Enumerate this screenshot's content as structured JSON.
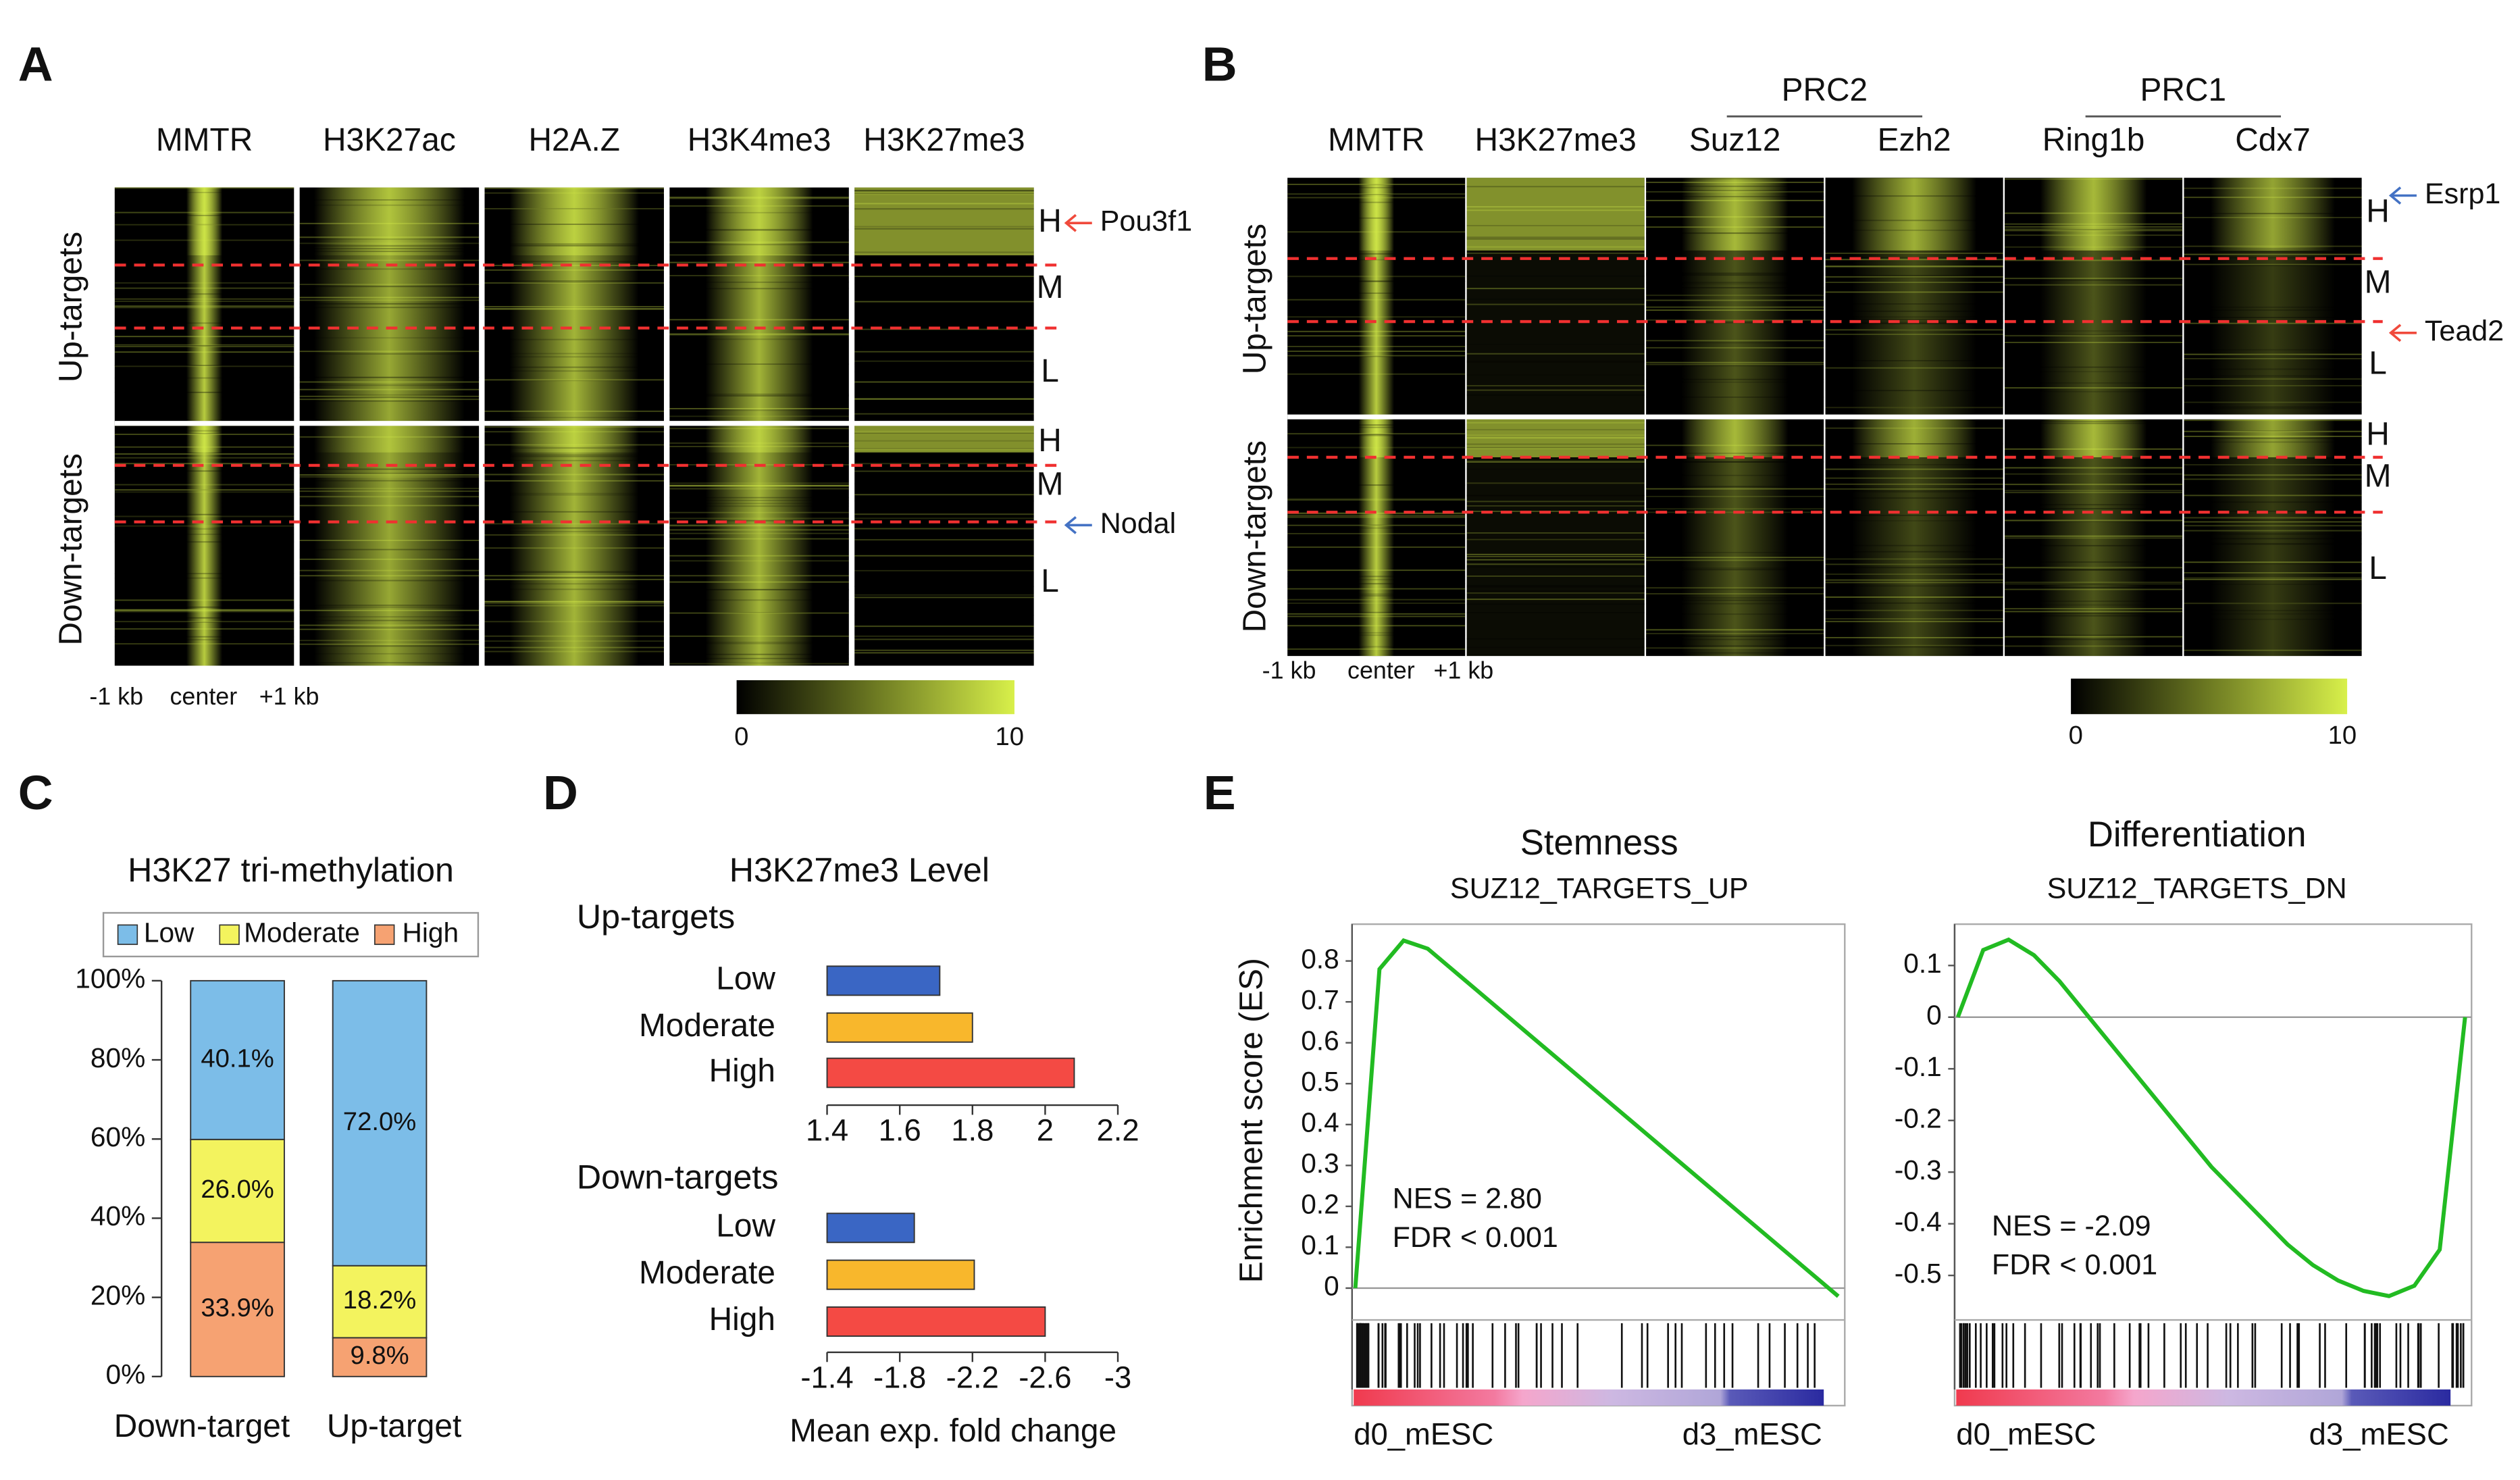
{
  "panel_labels": [
    "A",
    "B",
    "C",
    "D",
    "E"
  ],
  "heatmaps": [
    {
      "columns": [
        "MMTR",
        "H3K27ac",
        "H2A.Z",
        "H3K4me3",
        "H3K27me3"
      ],
      "groups": [
        "Up-targets",
        "Down-targets"
      ],
      "levels": [
        [
          "H",
          "M",
          "L"
        ],
        [
          "H",
          "M",
          "L"
        ]
      ],
      "annotations": [
        "Pou3f1",
        "Nodal"
      ],
      "x_labels": [
        "-1 kb",
        "center",
        "+1 kb"
      ],
      "colorbar_ticks": [
        0,
        10
      ]
    },
    {
      "column_groups": [
        "PRC2",
        "PRC1"
      ],
      "columns": [
        "MMTR",
        "H3K27me3",
        "Suz12",
        "Ezh2",
        "Ring1b",
        "Cdx7"
      ],
      "groups": [
        "Up-targets",
        "Down-targets"
      ],
      "levels": [
        [
          "H",
          "M",
          "L"
        ],
        [
          "H",
          "M",
          "L"
        ]
      ],
      "annotations": [
        "Esrp1",
        "Tead2"
      ],
      "x_labels": [
        "-1 kb",
        "center",
        "+1 kb"
      ],
      "colorbar_ticks": [
        0,
        10
      ]
    }
  ],
  "chart_data": [
    {
      "type": "stacked_bar",
      "title": "H3K27 tri-methylation",
      "categories": [
        "Down-target",
        "Up-target"
      ],
      "category_colors": [
        "#4472c4",
        "#f04a3c"
      ],
      "series": [
        {
          "name": "Low",
          "color": "#7cbde8",
          "values": [
            40.1,
            72.0
          ],
          "value_labels": [
            "40.1%",
            "72.0%"
          ]
        },
        {
          "name": "Moderate",
          "color": "#f3f35e",
          "values": [
            26.0,
            18.2
          ],
          "value_labels": [
            "26.0%",
            "18.2%"
          ]
        },
        {
          "name": "High",
          "color": "#f6a272",
          "values": [
            33.9,
            9.8
          ],
          "value_labels": [
            "33.9%",
            "9.8%"
          ]
        }
      ],
      "ylim": [
        0,
        100
      ],
      "yticks": [
        {
          "value": 0,
          "label": "0%"
        },
        {
          "value": 20,
          "label": "20%"
        },
        {
          "value": 40,
          "label": "40%"
        },
        {
          "value": 60,
          "label": "60%"
        },
        {
          "value": 80,
          "label": "80%"
        },
        {
          "value": 100,
          "label": "100%"
        }
      ],
      "legend": "top"
    },
    {
      "type": "hbar",
      "title": "H3K27me3 Level",
      "subtitle": "Up-targets",
      "subtitle_color": "#f04a3c",
      "categories": [
        "Low",
        "Moderate",
        "High"
      ],
      "colors": [
        "#3a66c4",
        "#f8b72c",
        "#f44a44"
      ],
      "values": [
        1.71,
        1.8,
        2.08
      ],
      "xlim": [
        1.4,
        2.2
      ],
      "xticks": [
        1.4,
        1.6,
        1.8,
        2,
        2.2
      ]
    },
    {
      "type": "hbar",
      "subtitle": "Down-targets",
      "subtitle_color": "#4472c4",
      "categories": [
        "Low",
        "Moderate",
        "High"
      ],
      "colors": [
        "#3a66c4",
        "#f8b72c",
        "#f44a44"
      ],
      "values": [
        -1.88,
        -2.21,
        -2.6
      ],
      "xlim": [
        -1.4,
        -3
      ],
      "xticks": [
        -1.4,
        -1.8,
        -2.2,
        -2.6,
        -3
      ],
      "xlabel": "Mean exp. fold change"
    },
    {
      "type": "line",
      "title": "Stemness",
      "subtitle": "SUZ12_TARGETS_UP",
      "ylabel": "Enrichment score (ES)",
      "color": "#22bb22",
      "values": [
        0,
        0.78,
        0.85,
        0.83,
        0.78,
        0.73,
        0.68,
        0.63,
        0.58,
        0.53,
        0.48,
        0.43,
        0.38,
        0.33,
        0.28,
        0.23,
        0.18,
        0.13,
        0.08,
        0.03,
        -0.02
      ],
      "ylim": [
        -0.07,
        0.89
      ],
      "yticks": [
        0,
        0.1,
        0.2,
        0.3,
        0.4,
        0.5,
        0.6,
        0.7,
        0.8
      ],
      "annotations": [
        "NES = 2.80",
        "FDR < 0.001"
      ],
      "rank_labels": [
        "d0_mESC",
        "d3_mESC"
      ]
    },
    {
      "type": "line",
      "title": "Differentiation",
      "subtitle": "SUZ12_TARGETS_DN",
      "color": "#22bb22",
      "values": [
        0,
        0.13,
        0.15,
        0.12,
        0.07,
        0.01,
        -0.05,
        -0.11,
        -0.17,
        -0.23,
        -0.29,
        -0.34,
        -0.39,
        -0.44,
        -0.48,
        -0.51,
        -0.53,
        -0.54,
        -0.52,
        -0.45,
        0
      ],
      "ylim": [
        -0.58,
        0.18
      ],
      "yticks": [
        0.1,
        0,
        -0.1,
        -0.2,
        -0.3,
        -0.4,
        -0.5
      ],
      "annotations": [
        "NES = -2.09",
        "FDR < 0.001"
      ],
      "rank_labels": [
        "d0_mESC",
        "d3_mESC"
      ]
    }
  ]
}
